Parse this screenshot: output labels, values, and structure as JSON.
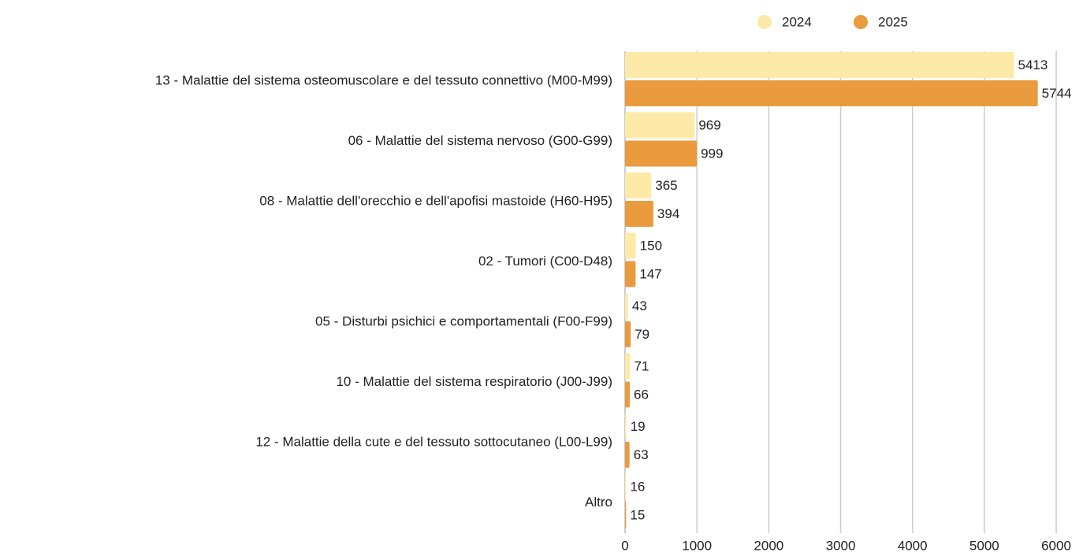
{
  "chart_data": {
    "type": "barh",
    "categories": [
      "13 - Malattie del sistema osteomuscolare e del tessuto connettivo (M00-M99)",
      "06 - Malattie del sistema nervoso (G00-G99)",
      "08 - Malattie dell'orecchio e dell'apofisi mastoide (H60-H95)",
      "02 - Tumori (C00-D48)",
      "05 - Disturbi psichici e comportamentali (F00-F99)",
      "10 - Malattie del sistema respiratorio (J00-J99)",
      "12 - Malattie della cute e del tessuto sottocutaneo (L00-L99)",
      "Altro"
    ],
    "series": [
      {
        "name": "2024",
        "color": "#fdeaa8",
        "values": [
          5413,
          969,
          365,
          150,
          43,
          71,
          19,
          16
        ]
      },
      {
        "name": "2025",
        "color": "#e99b3e",
        "values": [
          5744,
          999,
          394,
          147,
          79,
          66,
          63,
          15
        ]
      }
    ],
    "xlim": [
      0,
      6000
    ],
    "xticks": [
      0,
      1000,
      2000,
      3000,
      4000,
      5000,
      6000
    ],
    "grid": true,
    "legend": "top"
  }
}
